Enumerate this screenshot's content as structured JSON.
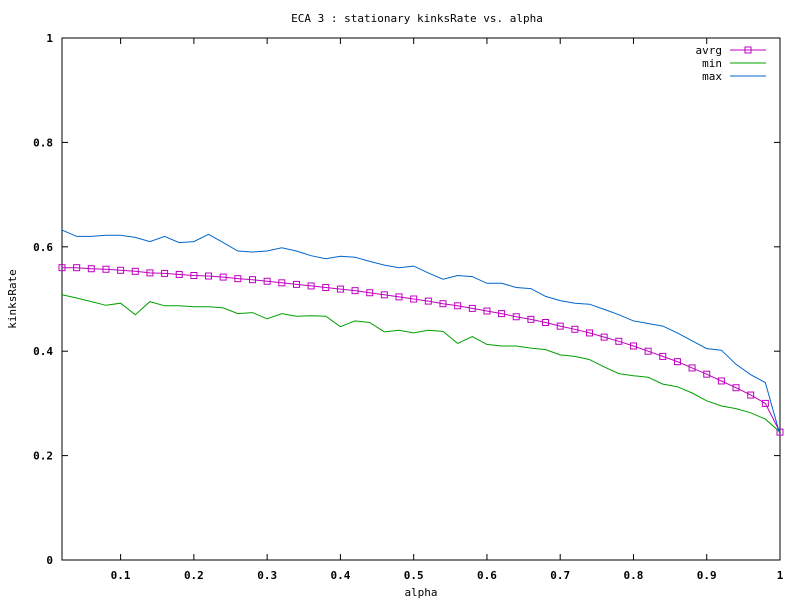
{
  "chart_data": {
    "type": "line",
    "title": "ECA 3 : stationary kinksRate vs. alpha",
    "xlabel": "alpha",
    "ylabel": "kinksRate",
    "xlim": [
      0.02,
      1.0
    ],
    "ylim": [
      0,
      1
    ],
    "xticks": [
      {
        "v": 0.1,
        "label": "0.1"
      },
      {
        "v": 0.2,
        "label": "0.2"
      },
      {
        "v": 0.3,
        "label": "0.3"
      },
      {
        "v": 0.4,
        "label": "0.4"
      },
      {
        "v": 0.5,
        "label": "0.5"
      },
      {
        "v": 0.6,
        "label": "0.6"
      },
      {
        "v": 0.7,
        "label": "0.7"
      },
      {
        "v": 0.8,
        "label": "0.8"
      },
      {
        "v": 0.9,
        "label": "0.9"
      },
      {
        "v": 1.0,
        "label": "1"
      }
    ],
    "yticks": [
      {
        "v": 0,
        "label": "0"
      },
      {
        "v": 0.2,
        "label": "0.2"
      },
      {
        "v": 0.4,
        "label": "0.4"
      },
      {
        "v": 0.6,
        "label": "0.6"
      },
      {
        "v": 0.8,
        "label": "0.8"
      },
      {
        "v": 1,
        "label": "1"
      }
    ],
    "grid": false,
    "legend_position": "top-right",
    "x": [
      0.02,
      0.04,
      0.06,
      0.08,
      0.1,
      0.12,
      0.14,
      0.16,
      0.18,
      0.2,
      0.22,
      0.24,
      0.26,
      0.28,
      0.3,
      0.32,
      0.34,
      0.36,
      0.38,
      0.4,
      0.42,
      0.44,
      0.46,
      0.48,
      0.5,
      0.52,
      0.54,
      0.56,
      0.58,
      0.6,
      0.62,
      0.64,
      0.66,
      0.68,
      0.7,
      0.72,
      0.74,
      0.76,
      0.78,
      0.8,
      0.82,
      0.84,
      0.86,
      0.88,
      0.9,
      0.92,
      0.94,
      0.96,
      0.98,
      1.0
    ],
    "series": [
      {
        "name": "avrg",
        "color": "#c000c0",
        "marker": "square",
        "values": [
          0.56,
          0.56,
          0.558,
          0.557,
          0.555,
          0.553,
          0.55,
          0.549,
          0.547,
          0.545,
          0.544,
          0.542,
          0.539,
          0.537,
          0.534,
          0.531,
          0.528,
          0.525,
          0.522,
          0.519,
          0.516,
          0.512,
          0.508,
          0.504,
          0.5,
          0.496,
          0.491,
          0.487,
          0.482,
          0.477,
          0.472,
          0.466,
          0.461,
          0.455,
          0.448,
          0.442,
          0.435,
          0.427,
          0.419,
          0.41,
          0.4,
          0.39,
          0.38,
          0.368,
          0.356,
          0.343,
          0.33,
          0.316,
          0.3,
          0.245
        ]
      },
      {
        "name": "min",
        "color": "#00a000",
        "marker": "none",
        "values": [
          0.508,
          0.502,
          0.495,
          0.488,
          0.492,
          0.47,
          0.495,
          0.487,
          0.487,
          0.485,
          0.485,
          0.483,
          0.472,
          0.474,
          0.462,
          0.472,
          0.467,
          0.468,
          0.467,
          0.447,
          0.458,
          0.455,
          0.437,
          0.44,
          0.435,
          0.44,
          0.438,
          0.415,
          0.428,
          0.413,
          0.41,
          0.41,
          0.406,
          0.403,
          0.393,
          0.39,
          0.384,
          0.37,
          0.357,
          0.353,
          0.35,
          0.337,
          0.332,
          0.32,
          0.305,
          0.295,
          0.29,
          0.282,
          0.27,
          0.245
        ]
      },
      {
        "name": "max",
        "color": "#0066cc",
        "marker": "none",
        "values": [
          0.632,
          0.62,
          0.62,
          0.622,
          0.622,
          0.618,
          0.61,
          0.62,
          0.608,
          0.61,
          0.624,
          0.608,
          0.592,
          0.59,
          0.592,
          0.598,
          0.592,
          0.583,
          0.577,
          0.582,
          0.58,
          0.572,
          0.565,
          0.56,
          0.563,
          0.55,
          0.538,
          0.545,
          0.543,
          0.53,
          0.53,
          0.522,
          0.52,
          0.505,
          0.497,
          0.492,
          0.49,
          0.48,
          0.47,
          0.458,
          0.453,
          0.448,
          0.435,
          0.42,
          0.405,
          0.402,
          0.375,
          0.355,
          0.34,
          0.24
        ]
      }
    ]
  }
}
